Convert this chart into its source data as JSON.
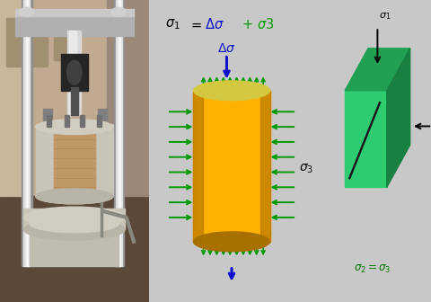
{
  "bg_color": "#c8c8c8",
  "middle_panel_bg": "#dcdcdc",
  "right_panel_bg": "#e0e0e0",
  "cylinder_color": "#FFB300",
  "cylinder_dark": "#C88000",
  "cylinder_top_color": "#FFD060",
  "arrow_color_green": "#009900",
  "arrow_color_blue": "#1010CC",
  "cube_color": "#2ECC71",
  "cube_dark": "#20A050",
  "cube_darker": "#188040",
  "wall_bg": "#b8a898",
  "wall_upper": "#c8b8a0",
  "wall_lower": "#6a5848",
  "rod_color": "#d0d0d0",
  "metal_color": "#c0c0c0",
  "cell_color": "#d8d4c8",
  "sample_color": "#c8a060"
}
